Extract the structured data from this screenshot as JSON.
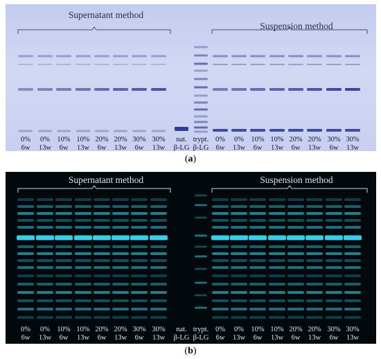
{
  "panels": [
    {
      "id": "a",
      "caption_letter": "a",
      "group_left": "Supernatant method",
      "group_right": "Suspension method",
      "lanes": [
        {
          "top": "0%",
          "bottom": "6w"
        },
        {
          "top": "0%",
          "bottom": "13w"
        },
        {
          "top": "10%",
          "bottom": "6w"
        },
        {
          "top": "10%",
          "bottom": "13w"
        },
        {
          "top": "20%",
          "bottom": "6w"
        },
        {
          "top": "20%",
          "bottom": "13w"
        },
        {
          "top": "30%",
          "bottom": "6w"
        },
        {
          "top": "30%",
          "bottom": "13w"
        },
        {
          "top": "nat.",
          "bottom": "β-LG"
        },
        {
          "top": "trypt.",
          "bottom": "β-LG"
        },
        {
          "top": "0%",
          "bottom": "6w"
        },
        {
          "top": "0%",
          "bottom": "13w"
        },
        {
          "top": "10%",
          "bottom": "6w"
        },
        {
          "top": "10%",
          "bottom": "13w"
        },
        {
          "top": "20%",
          "bottom": "6w"
        },
        {
          "top": "20%",
          "bottom": "13w"
        },
        {
          "top": "30%",
          "bottom": "6w"
        },
        {
          "top": "30%",
          "bottom": "13w"
        }
      ],
      "colors": {
        "background": "#c9d0ef",
        "band": "#2a358f"
      }
    },
    {
      "id": "b",
      "caption_letter": "b",
      "group_left": "Supernatant method",
      "group_right": "Suspension method",
      "lanes": [
        {
          "top": "0%",
          "bottom": "6w"
        },
        {
          "top": "0%",
          "bottom": "13w"
        },
        {
          "top": "10%",
          "bottom": "6w"
        },
        {
          "top": "10%",
          "bottom": "13w"
        },
        {
          "top": "20%",
          "bottom": "6w"
        },
        {
          "top": "20%",
          "bottom": "13w"
        },
        {
          "top": "30%",
          "bottom": "6w"
        },
        {
          "top": "30%",
          "bottom": "13w"
        },
        {
          "top": "nat.",
          "bottom": "β-LG"
        },
        {
          "top": "trypt.",
          "bottom": "β-LG"
        },
        {
          "top": "0%",
          "bottom": "6w"
        },
        {
          "top": "0%",
          "bottom": "13w"
        },
        {
          "top": "10%",
          "bottom": "6w"
        },
        {
          "top": "10%",
          "bottom": "13w"
        },
        {
          "top": "20%",
          "bottom": "6w"
        },
        {
          "top": "20%",
          "bottom": "13w"
        },
        {
          "top": "30%",
          "bottom": "6w"
        },
        {
          "top": "30%",
          "bottom": "13w"
        }
      ],
      "colors": {
        "background": "#02090d",
        "band": "#3fd6f0"
      }
    }
  ]
}
